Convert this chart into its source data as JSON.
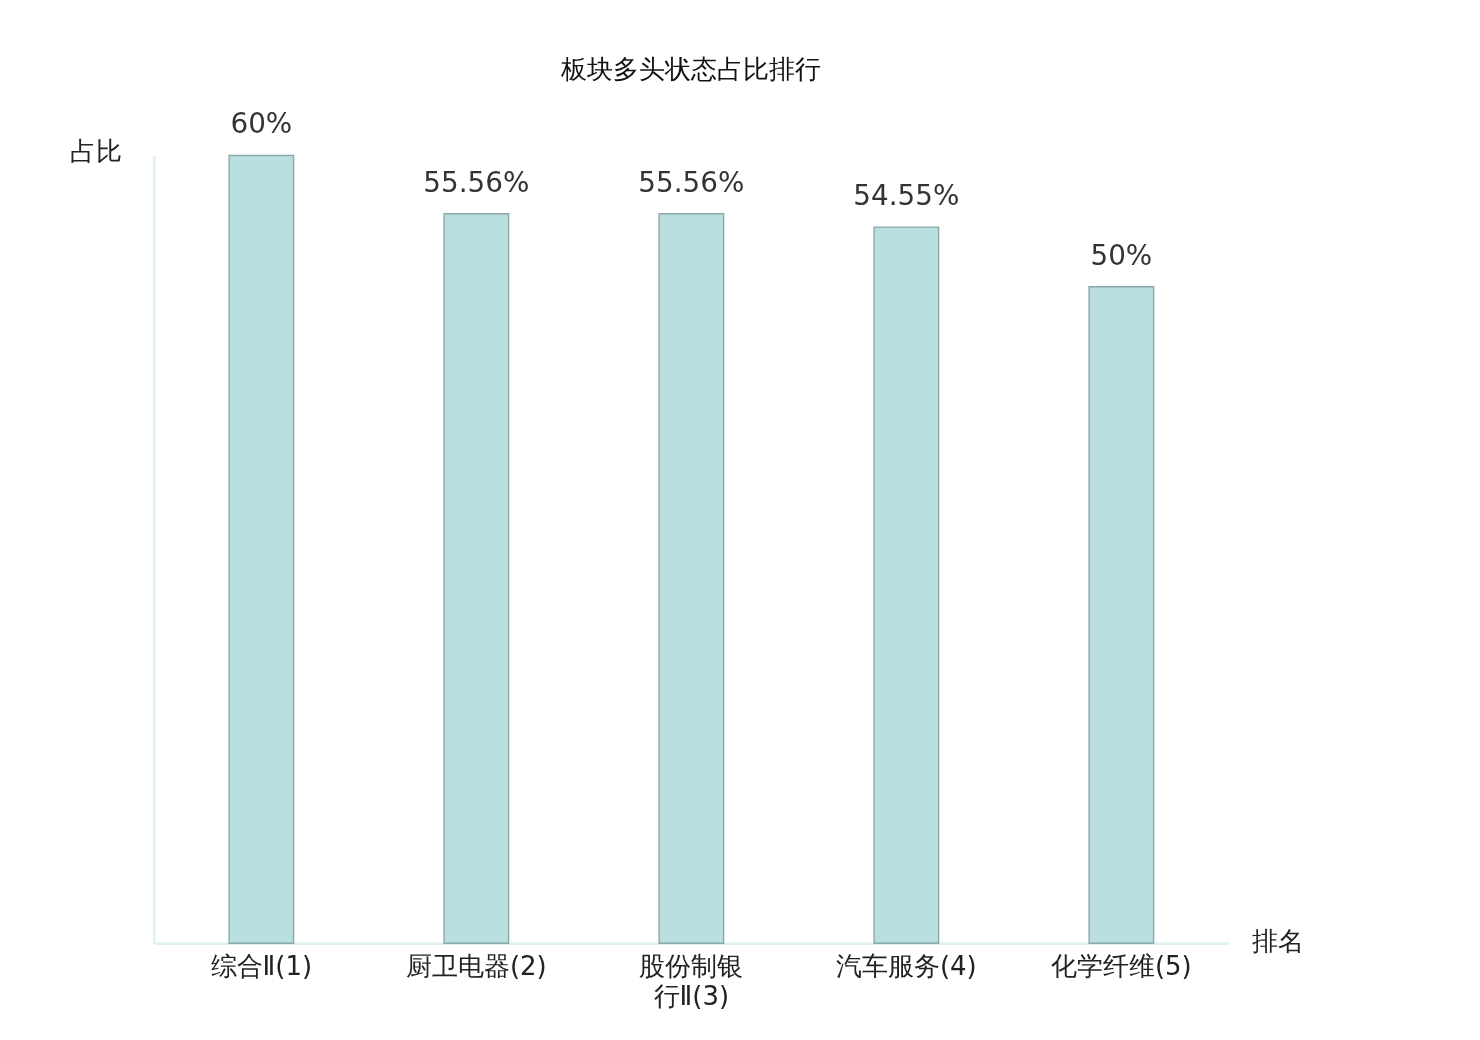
{
  "chart_data": {
    "type": "bar",
    "title": "板块多头状态占比排行",
    "xlabel": "排名",
    "ylabel": "占比",
    "categories": [
      "综合Ⅱ(1)",
      "厨卫电器(2)",
      "股份制银行Ⅱ(3)",
      "汽车服务(4)",
      "化学纤维(5)"
    ],
    "values": [
      60,
      55.56,
      55.56,
      54.55,
      50
    ],
    "value_labels": [
      "60%",
      "55.56%",
      "55.56%",
      "54.55%",
      "50%"
    ],
    "color": "#b9dfe1",
    "ylim": [
      0,
      60
    ],
    "tick_labels": "x",
    "grid": false
  }
}
